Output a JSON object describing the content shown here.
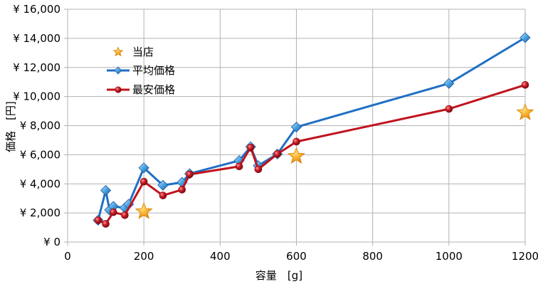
{
  "chart_data": {
    "type": "line",
    "xlabel": "容量　[g]",
    "ylabel": "価格　[円]",
    "xlim": [
      0,
      1200
    ],
    "ylim": [
      0,
      16000
    ],
    "x_ticks": [
      "0",
      "200",
      "400",
      "600",
      "800",
      "1000",
      "1200"
    ],
    "y_ticks": [
      "¥ 0",
      "¥ 2,000",
      "¥ 4,000",
      "¥ 6,000",
      "¥ 8,000",
      "¥ 10,000",
      "¥ 12,000",
      "¥ 14,000",
      "¥ 16,000"
    ],
    "grid": true,
    "legend_position": "top-left",
    "series": [
      {
        "name": "当店",
        "marker": "star",
        "line": false,
        "color": "#f5a623",
        "x": [
          200,
          600,
          1200
        ],
        "y": [
          2100,
          5900,
          8900
        ]
      },
      {
        "name": "平均価格",
        "marker": "diamond",
        "line": true,
        "color": "#1f6fc5",
        "x": [
          80,
          100,
          110,
          120,
          150,
          160,
          200,
          250,
          300,
          320,
          450,
          480,
          500,
          550,
          600,
          1000,
          1200
        ],
        "y": [
          1500,
          3550,
          2200,
          2450,
          2350,
          2600,
          5100,
          3900,
          4100,
          4700,
          5600,
          6550,
          5250,
          6050,
          7900,
          10900,
          14050
        ]
      },
      {
        "name": "最安価格",
        "marker": "circle",
        "line": true,
        "color": "#c0131c",
        "x": [
          80,
          100,
          120,
          150,
          200,
          250,
          300,
          320,
          450,
          480,
          500,
          550,
          600,
          1000,
          1200
        ],
        "y": [
          1500,
          1250,
          2050,
          1850,
          4150,
          3200,
          3600,
          4650,
          5200,
          6500,
          5000,
          6050,
          6900,
          9150,
          10800
        ]
      }
    ]
  }
}
